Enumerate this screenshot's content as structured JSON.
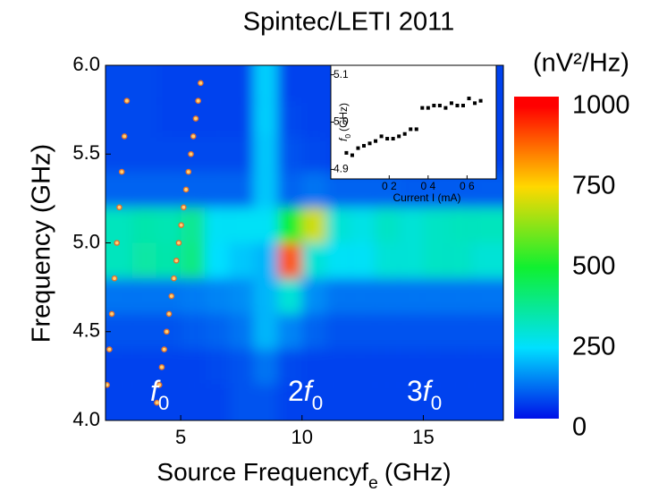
{
  "chart_data": {
    "type": "heatmap",
    "title": "Spintec/LETI  2011",
    "x_label": {
      "text": "Source Frequency",
      "symbol": "f",
      "subscript": "e",
      "unit": "(GHz)"
    },
    "y_label": "Frequency (GHz)",
    "xlim": [
      1.9,
      18.3
    ],
    "xticks": [
      5,
      10,
      15
    ],
    "ylim": [
      4,
      6
    ],
    "yticks": [
      {
        "value": 4,
        "label": "4.0"
      },
      {
        "value": 4.5,
        "label": "4.5"
      },
      {
        "value": 5,
        "label": "5.0"
      },
      {
        "value": 5.5,
        "label": "5.5"
      },
      {
        "value": 6,
        "label": "6.0"
      }
    ],
    "x": [
      2.5,
      3.5,
      4.5,
      5.5,
      6.5,
      7.5,
      8.5,
      9.5,
      10.5,
      11.5,
      12.5,
      13.5,
      14.5,
      15.5,
      16.5,
      17.5
    ],
    "y": [
      4.1,
      4.3,
      4.5,
      4.7,
      4.9,
      5.1,
      5.3,
      5.5,
      5.7,
      5.9
    ],
    "z": [
      [
        60,
        60,
        60,
        60,
        60,
        80,
        80,
        60,
        60,
        60,
        60,
        60,
        60,
        60,
        60,
        60
      ],
      [
        60,
        60,
        60,
        60,
        70,
        80,
        120,
        70,
        60,
        60,
        60,
        60,
        60,
        60,
        60,
        60
      ],
      [
        80,
        80,
        80,
        90,
        100,
        120,
        200,
        140,
        100,
        80,
        80,
        80,
        80,
        80,
        80,
        80
      ],
      [
        120,
        120,
        120,
        130,
        140,
        150,
        200,
        300,
        150,
        120,
        120,
        120,
        120,
        120,
        120,
        120
      ],
      [
        330,
        360,
        350,
        400,
        250,
        220,
        200,
        900,
        300,
        260,
        260,
        300,
        300,
        320,
        320,
        300
      ],
      [
        330,
        350,
        340,
        380,
        260,
        260,
        260,
        500,
        700,
        300,
        280,
        320,
        300,
        320,
        330,
        330
      ],
      [
        100,
        100,
        100,
        100,
        100,
        100,
        220,
        100,
        120,
        100,
        100,
        100,
        90,
        90,
        90,
        90
      ],
      [
        70,
        70,
        70,
        70,
        70,
        70,
        220,
        80,
        70,
        60,
        60,
        60,
        60,
        60,
        60,
        60
      ],
      [
        70,
        70,
        60,
        60,
        60,
        60,
        230,
        70,
        60,
        60,
        60,
        60,
        60,
        60,
        60,
        60
      ],
      [
        70,
        70,
        60,
        60,
        60,
        60,
        230,
        60,
        60,
        60,
        60,
        60,
        60,
        60,
        60,
        60
      ]
    ],
    "colorbar": {
      "label": "(nV²/Hz)",
      "zlim": [
        30,
        1030
      ],
      "ticks": [
        0,
        250,
        500,
        750,
        1000
      ],
      "colors": [
        "#0010e8",
        "#00e0ff",
        "#10f030",
        "#ffd800",
        "#ff0000"
      ]
    },
    "annotations": [
      {
        "symbol": "f",
        "subscript": "0"
      },
      {
        "coefficient": "2",
        "symbol": "f",
        "subscript": "0"
      },
      {
        "coefficient": "3",
        "symbol": "f",
        "subscript": "0"
      }
    ],
    "markers": [
      {
        "color": "#e07030",
        "x": [
          1.96,
          2.06,
          2.16,
          2.27,
          2.37,
          2.47,
          2.57,
          2.68,
          2.78
        ],
        "y": [
          4.2,
          4.4,
          4.6,
          4.8,
          5.0,
          5.2,
          5.4,
          5.6,
          5.8
        ]
      },
      {
        "color": "#e07030",
        "x": [
          4.02,
          4.12,
          4.22,
          4.32,
          4.42,
          4.52,
          4.62,
          4.72,
          4.82,
          4.92,
          5.02,
          5.12,
          5.22,
          5.32,
          5.42,
          5.52,
          5.62,
          5.72,
          5.82
        ],
        "y": [
          4.1,
          4.2,
          4.3,
          4.4,
          4.5,
          4.6,
          4.7,
          4.8,
          4.9,
          5.0,
          5.1,
          5.2,
          5.3,
          5.4,
          5.5,
          5.6,
          5.7,
          5.8,
          5.9
        ]
      }
    ],
    "inset": {
      "type": "scatter",
      "x_label": "Current I (mA)",
      "y_label": {
        "symbol": "f",
        "subscript": "0",
        "unit": "(GHz)"
      },
      "xlim": [
        -0.1,
        0.75
      ],
      "xticks": [
        {
          "value": 0.2,
          "label": "0 2"
        },
        {
          "value": 0.4,
          "label": "0 4"
        },
        {
          "value": 0.6,
          "label": "0 6"
        }
      ],
      "ylim": [
        4.88,
        5.12
      ],
      "yticks": [
        {
          "value": 4.9,
          "label": "4.9"
        },
        {
          "value": 5.0,
          "label": "5 0"
        },
        {
          "value": 5.1,
          "label": "5.1"
        }
      ],
      "color": "#000000",
      "x": [
        -0.02,
        0.01,
        0.04,
        0.07,
        0.1,
        0.13,
        0.16,
        0.19,
        0.22,
        0.25,
        0.28,
        0.31,
        0.34,
        0.37,
        0.4,
        0.43,
        0.46,
        0.49,
        0.52,
        0.55,
        0.58,
        0.61,
        0.64,
        0.67
      ],
      "y": [
        4.935,
        4.93,
        4.945,
        4.95,
        4.955,
        4.96,
        4.97,
        4.965,
        4.965,
        4.97,
        4.975,
        4.985,
        4.985,
        5.03,
        5.03,
        5.035,
        5.035,
        5.03,
        5.04,
        5.035,
        5.035,
        5.05,
        5.04,
        5.045
      ]
    }
  }
}
